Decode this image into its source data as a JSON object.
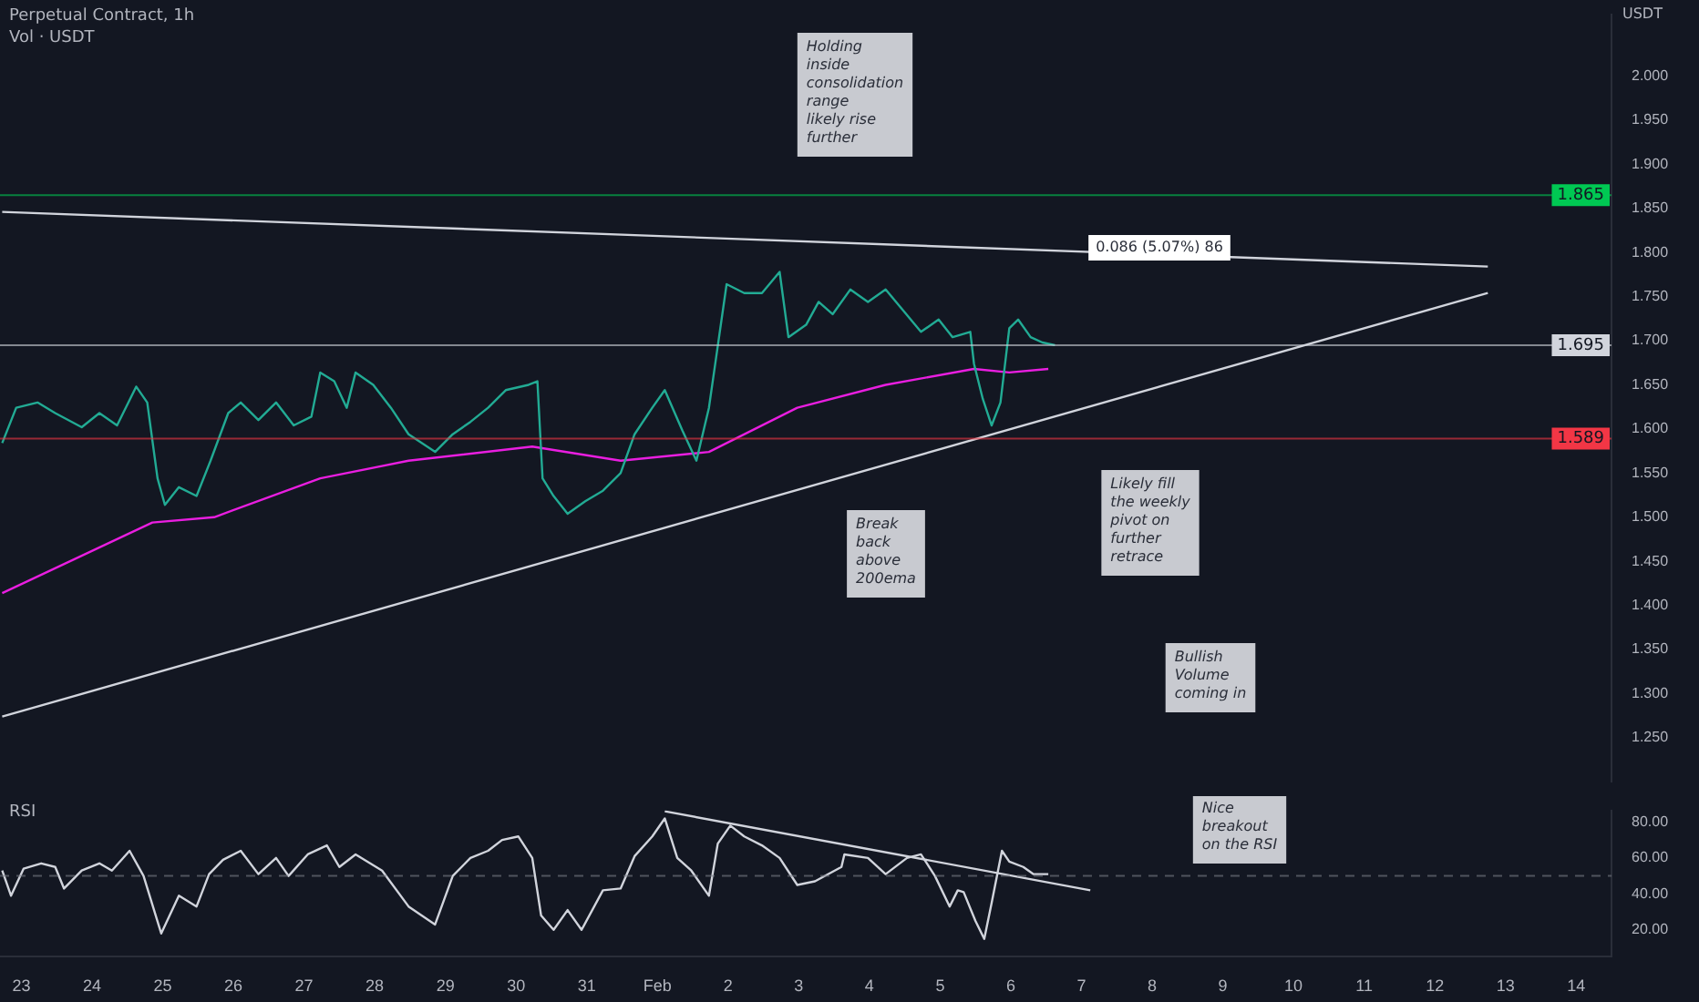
{
  "chart_data": [
    {
      "type": "line",
      "title": "Perpetual Contract, 1h",
      "ylabel": "USDT",
      "annotations": [
        "Vol · USDT",
        "Holding inside consolidation range likely rise further",
        "Break back above 200ema",
        "Likely fill the weekly pivot on further retrace",
        "Bullish Volume coming in",
        "0.086 (5.07%) 86"
      ],
      "xlim": [
        "--01-22T16:45",
        "--02-14T12:00"
      ],
      "ylim": [
        1.2,
        2.07
      ],
      "yticks": [
        {
          "value": 1.25,
          "label": "1.250"
        },
        {
          "value": 1.3,
          "label": "1.300"
        },
        {
          "value": 1.35,
          "label": "1.350"
        },
        {
          "value": 1.4,
          "label": "1.400"
        },
        {
          "value": 1.45,
          "label": "1.450"
        },
        {
          "value": 1.5,
          "label": "1.500"
        },
        {
          "value": 1.55,
          "label": "1.550"
        },
        {
          "value": 1.6,
          "label": "1.600"
        },
        {
          "value": 1.65,
          "label": "1.650"
        },
        {
          "value": 1.7,
          "label": "1.700"
        },
        {
          "value": 1.75,
          "label": "1.750"
        },
        {
          "value": 1.8,
          "label": "1.800"
        },
        {
          "value": 1.85,
          "label": "1.850"
        },
        {
          "value": 1.9,
          "label": "1.900"
        },
        {
          "value": 1.95,
          "label": "1.950"
        },
        {
          "value": 2.0,
          "label": "2.000"
        }
      ],
      "tick_labels": "y",
      "grid": false,
      "legend": false,
      "marker": "none",
      "ref_lines": [
        {
          "axis": "y",
          "value": 1.865,
          "label": "1.865",
          "color": "#00c853"
        },
        {
          "axis": "y",
          "value": 1.695,
          "label": "1.695",
          "color": "#d1d4dc"
        },
        {
          "axis": "y",
          "value": 1.589,
          "label": "1.589",
          "color": "#f23645"
        }
      ],
      "series": [
        {
          "color": "#22ab94",
          "x": [
            "--01-22T17:30",
            "--01-22T22:15",
            "--01-23T05:30",
            "--01-23T11:30",
            "--01-23T20:30",
            "--01-24T02:30",
            "--01-24T08:30",
            "--01-24T15:00",
            "--01-24T18:45",
            "--01-24T22:15",
            "--01-25T00:45",
            "--01-25T05:30",
            "--01-25T11:30",
            "--01-25T16:15",
            "--01-25T22:15",
            "--01-26T02:30",
            "--01-26T08:30",
            "--01-26T14:30",
            "--01-26T20:30",
            "--01-27T02:30",
            "--01-27T05:30",
            "--01-27T10:15",
            "--01-27T14:30",
            "--01-27T17:30",
            "--01-27T23:30",
            "--01-28T05:30",
            "--01-28T11:30",
            "--01-28T20:30",
            "--01-29T02:30",
            "--01-29T08:30",
            "--01-29T14:30",
            "--01-29T20:30",
            "--01-30T04:15",
            "--01-30T07:15",
            "--01-30T09:00",
            "--01-30T12:45",
            "--01-30T17:30",
            "--01-30T23:30",
            "--01-31T05:30",
            "--01-31T11:30",
            "--01-31T16:15",
            "--01-31T22:15",
            "--02-01T02:30",
            "--02-01T08:30",
            "--02-01T13:15",
            "--02-01T17:30",
            "--02-01T20:30",
            "--02-01T23:30",
            "--02-02T05:30",
            "--02-02T11:30",
            "--02-02T17:30",
            "--02-02T20:30",
            "--02-03T02:30",
            "--02-03T06:45",
            "--02-03T11:30",
            "--02-03T17:30",
            "--02-03T23:30",
            "--02-04T05:30",
            "--02-04T11:30",
            "--02-04T17:30",
            "--02-04T23:30",
            "--02-05T04:15",
            "--02-05T10:15",
            "--02-05T11:30",
            "--02-05T14:30",
            "--02-05T17:30",
            "--02-05T20:30",
            "--02-05T23:30",
            "--02-06T02:30",
            "--02-06T06:45",
            "--02-06T10:45",
            "--02-06T15:00"
          ],
          "values": [
            1.584,
            1.624,
            1.63,
            1.618,
            1.602,
            1.618,
            1.604,
            1.648,
            1.63,
            1.544,
            1.514,
            1.534,
            1.524,
            1.564,
            1.618,
            1.63,
            1.61,
            1.63,
            1.604,
            1.614,
            1.664,
            1.654,
            1.624,
            1.664,
            1.65,
            1.624,
            1.594,
            1.574,
            1.594,
            1.608,
            1.624,
            1.644,
            1.65,
            1.654,
            1.544,
            1.524,
            1.504,
            1.518,
            1.53,
            1.55,
            1.594,
            1.624,
            1.644,
            1.598,
            1.564,
            1.624,
            1.694,
            1.764,
            1.754,
            1.754,
            1.778,
            1.704,
            1.718,
            1.744,
            1.73,
            1.758,
            1.744,
            1.758,
            1.734,
            1.71,
            1.724,
            1.704,
            1.71,
            1.674,
            1.634,
            1.604,
            1.63,
            1.714,
            1.724,
            1.704,
            1.698,
            1.695
          ]
        },
        {
          "color": "#e91ee0",
          "x": [
            "--01-22T17:30",
            "--01-24T20:30",
            "--01-25T17:30",
            "--01-27T05:30",
            "--01-28T11:30",
            "--01-30T05:30",
            "--01-31T11:30",
            "--02-01T17:30",
            "--02-02T23:30",
            "--02-04T05:30",
            "--02-05T11:30",
            "--02-05T23:30",
            "--02-06T12:45"
          ],
          "values": [
            1.414,
            1.494,
            1.5,
            1.544,
            1.564,
            1.58,
            1.564,
            1.574,
            1.624,
            1.65,
            1.668,
            1.664,
            1.668
          ]
        },
        {
          "color": "#d1d4dc",
          "x": [
            "--01-22T17:30",
            "--02-12T18:00"
          ],
          "values": [
            1.846,
            1.784
          ]
        },
        {
          "color": "#d1d4dc",
          "x": [
            "--01-22T17:30",
            "--02-12T18:00"
          ],
          "values": [
            1.274,
            1.754
          ]
        }
      ]
    },
    {
      "type": "line",
      "title": "RSI",
      "annotations": [
        "Nice breakout on the RSI"
      ],
      "xlim": [
        "--01-22T16:45",
        "--02-14T12:00"
      ],
      "xticks": [
        {
          "value": "--01-23",
          "label": "23"
        },
        {
          "value": "--01-24",
          "label": "24"
        },
        {
          "value": "--01-25",
          "label": "25"
        },
        {
          "value": "--01-26",
          "label": "26"
        },
        {
          "value": "--01-27",
          "label": "27"
        },
        {
          "value": "--01-28",
          "label": "28"
        },
        {
          "value": "--01-29",
          "label": "29"
        },
        {
          "value": "--01-30",
          "label": "30"
        },
        {
          "value": "--01-31",
          "label": "31"
        },
        {
          "value": "--02-01",
          "label": "Feb"
        },
        {
          "value": "--02-02",
          "label": "2"
        },
        {
          "value": "--02-03",
          "label": "3"
        },
        {
          "value": "--02-04",
          "label": "4"
        },
        {
          "value": "--02-05",
          "label": "5"
        },
        {
          "value": "--02-06",
          "label": "6"
        },
        {
          "value": "--02-07",
          "label": "7"
        },
        {
          "value": "--02-08",
          "label": "8"
        },
        {
          "value": "--02-09",
          "label": "9"
        },
        {
          "value": "--02-10",
          "label": "10"
        },
        {
          "value": "--02-11",
          "label": "11"
        },
        {
          "value": "--02-12",
          "label": "12"
        },
        {
          "value": "--02-13",
          "label": "13"
        },
        {
          "value": "--02-14",
          "label": "14"
        }
      ],
      "ylim": [
        5,
        86.5
      ],
      "yticks": [
        {
          "value": 20,
          "label": "20.00"
        },
        {
          "value": 40,
          "label": "40.00"
        },
        {
          "value": 60,
          "label": "60.00"
        },
        {
          "value": 80,
          "label": "80.00"
        }
      ],
      "grid": false,
      "legend": false,
      "marker": "none",
      "ref_lines": [
        {
          "axis": "y",
          "value": 50,
          "color": "#787b86",
          "line_style": "dashed"
        }
      ],
      "series": [
        {
          "color": "#d1d4dc",
          "x": [
            "--01-22T17:30",
            "--01-22T20:30",
            "--01-23T00:45",
            "--01-23T06:45",
            "--01-23T11:30",
            "--01-23T14:30",
            "--01-23T20:30",
            "--01-24T02:30",
            "--01-24T06:45",
            "--01-24T12:45",
            "--01-24T17:30",
            "--01-24T23:30",
            "--01-25T05:30",
            "--01-25T11:30",
            "--01-25T15:45",
            "--01-25T20:30",
            "--01-26T02:30",
            "--01-26T08:30",
            "--01-26T14:30",
            "--01-26T18:45",
            "--01-27T01:15",
            "--01-27T07:45",
            "--01-27T12:00",
            "--01-27T17:30",
            "--01-28T02:30",
            "--01-28T11:30",
            "--01-28T20:30",
            "--01-29T02:30",
            "--01-29T08:30",
            "--01-29T14:30",
            "--01-29T19:15",
            "--01-30T00:45",
            "--01-30T05:30",
            "--01-30T08:30",
            "--01-30T12:45",
            "--01-30T17:30",
            "--01-30T22:15",
            "--01-31T05:30",
            "--01-31T11:30",
            "--01-31T16:15",
            "--01-31T22:15",
            "--02-01T02:30",
            "--02-01T06:45",
            "--02-01T11:30",
            "--02-01T17:30",
            "--02-01T20:30",
            "--02-02T00:45",
            "--02-02T05:30",
            "--02-02T11:30",
            "--02-02T17:30",
            "--02-02T23:30",
            "--02-03T05:30",
            "--02-03T14:30",
            "--02-03T15:30",
            "--02-03T23:30",
            "--02-04T05:30",
            "--02-04T12:45",
            "--02-04T17:30",
            "--02-04T22:15",
            "--02-05T03:15",
            "--02-05T06:00",
            "--02-05T08:00",
            "--02-05T12:00",
            "--02-05T15:00",
            "--02-05T17:30",
            "--02-05T21:00",
            "--02-05T23:30",
            "--02-06T04:15",
            "--02-06T07:45",
            "--02-06T12:45"
          ],
          "values": [
            53,
            39,
            54,
            57,
            55,
            43,
            53,
            57,
            53,
            64,
            50,
            18,
            39,
            33,
            51,
            59,
            64,
            51,
            60,
            50,
            62,
            67,
            55,
            62,
            53,
            33,
            23,
            50,
            60,
            64,
            70,
            72,
            60,
            28,
            20,
            31,
            20,
            42,
            43,
            61,
            72,
            82,
            60,
            53,
            39,
            68,
            78,
            72,
            67,
            60,
            45,
            47,
            55,
            62,
            60,
            51,
            60,
            62,
            50,
            33,
            42,
            41,
            25,
            15,
            35,
            64,
            58,
            55,
            51,
            51
          ]
        },
        {
          "color": "#d1d4dc",
          "x": [
            "--02-01T02:30",
            "--02-07T03:00"
          ],
          "values": [
            86,
            42
          ]
        }
      ]
    }
  ]
}
